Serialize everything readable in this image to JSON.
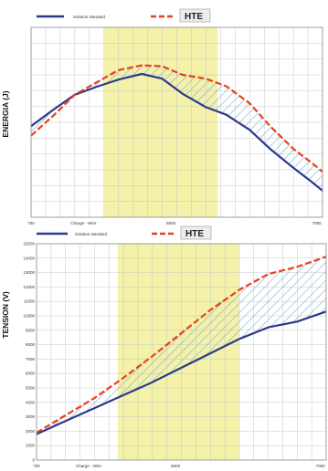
{
  "colors": {
    "series_standard": "#2b3a8c",
    "series_hte": "#e8401c",
    "band": "#f2ee9a",
    "hatch": "#7ab2d8",
    "grid": "#c8c8c8",
    "frame": "#888888"
  },
  "chart_data": [
    {
      "type": "line",
      "ylabel": "ENERGIA (J)",
      "xticks": [
        "700",
        "Charge - Wire",
        "5000",
        "7000"
      ],
      "xlim": [
        0,
        10
      ],
      "ylim": [
        0,
        10
      ],
      "highlight_band_x": [
        2.5,
        6.4
      ],
      "grid": true,
      "legend_placement": "top",
      "series": [
        {
          "name": "Solution standard",
          "color": "#2b3a8c",
          "style": "solid",
          "x": [
            0,
            0.8,
            1.5,
            2.3,
            3.0,
            3.8,
            4.5,
            5.2,
            6.0,
            6.7,
            7.5,
            8.2,
            9.0,
            9.6,
            10
          ],
          "y": [
            4.8,
            5.7,
            6.45,
            6.9,
            7.25,
            7.55,
            7.3,
            6.5,
            5.8,
            5.4,
            4.6,
            3.6,
            2.6,
            1.9,
            1.4
          ]
        },
        {
          "name": "HTE",
          "color": "#e8401c",
          "style": "dashed",
          "x": [
            0,
            0.8,
            1.5,
            2.3,
            3.0,
            3.8,
            4.5,
            5.2,
            6.0,
            6.7,
            7.5,
            8.2,
            9.0,
            9.6,
            10
          ],
          "y": [
            4.3,
            5.4,
            6.45,
            7.15,
            7.75,
            8.0,
            7.95,
            7.5,
            7.3,
            6.9,
            6.0,
            4.8,
            3.6,
            2.9,
            2.4
          ]
        }
      ]
    },
    {
      "type": "line",
      "ylabel": "TENSION (V)",
      "yticks": [
        "0",
        "1000",
        "2000",
        "3000",
        "4000",
        "5000",
        "6000",
        "7000",
        "8000",
        "9000",
        "10000",
        "11000",
        "12000",
        "13000",
        "14000",
        "15000"
      ],
      "xticks": [
        "700",
        "Charge - Wire",
        "5000",
        "7000"
      ],
      "xlim": [
        0,
        10
      ],
      "ylim": [
        0,
        15000
      ],
      "highlight_band_x": [
        2.8,
        7.0
      ],
      "grid": true,
      "legend_placement": "top",
      "series": [
        {
          "name": "Solution standard",
          "color": "#2b3a8c",
          "style": "solid",
          "x": [
            0,
            1,
            2,
            3,
            4,
            5,
            6,
            7,
            8,
            9,
            10
          ],
          "y": [
            1800,
            2700,
            3600,
            4500,
            5400,
            6400,
            7400,
            8400,
            9200,
            9600,
            10300
          ]
        },
        {
          "name": "HTE",
          "color": "#e8401c",
          "style": "dashed",
          "x": [
            0,
            1,
            2,
            3,
            4,
            5,
            6,
            7,
            8,
            9,
            10
          ],
          "y": [
            1900,
            3100,
            4300,
            5700,
            7200,
            8800,
            10400,
            11800,
            12900,
            13400,
            14100
          ]
        }
      ]
    }
  ]
}
